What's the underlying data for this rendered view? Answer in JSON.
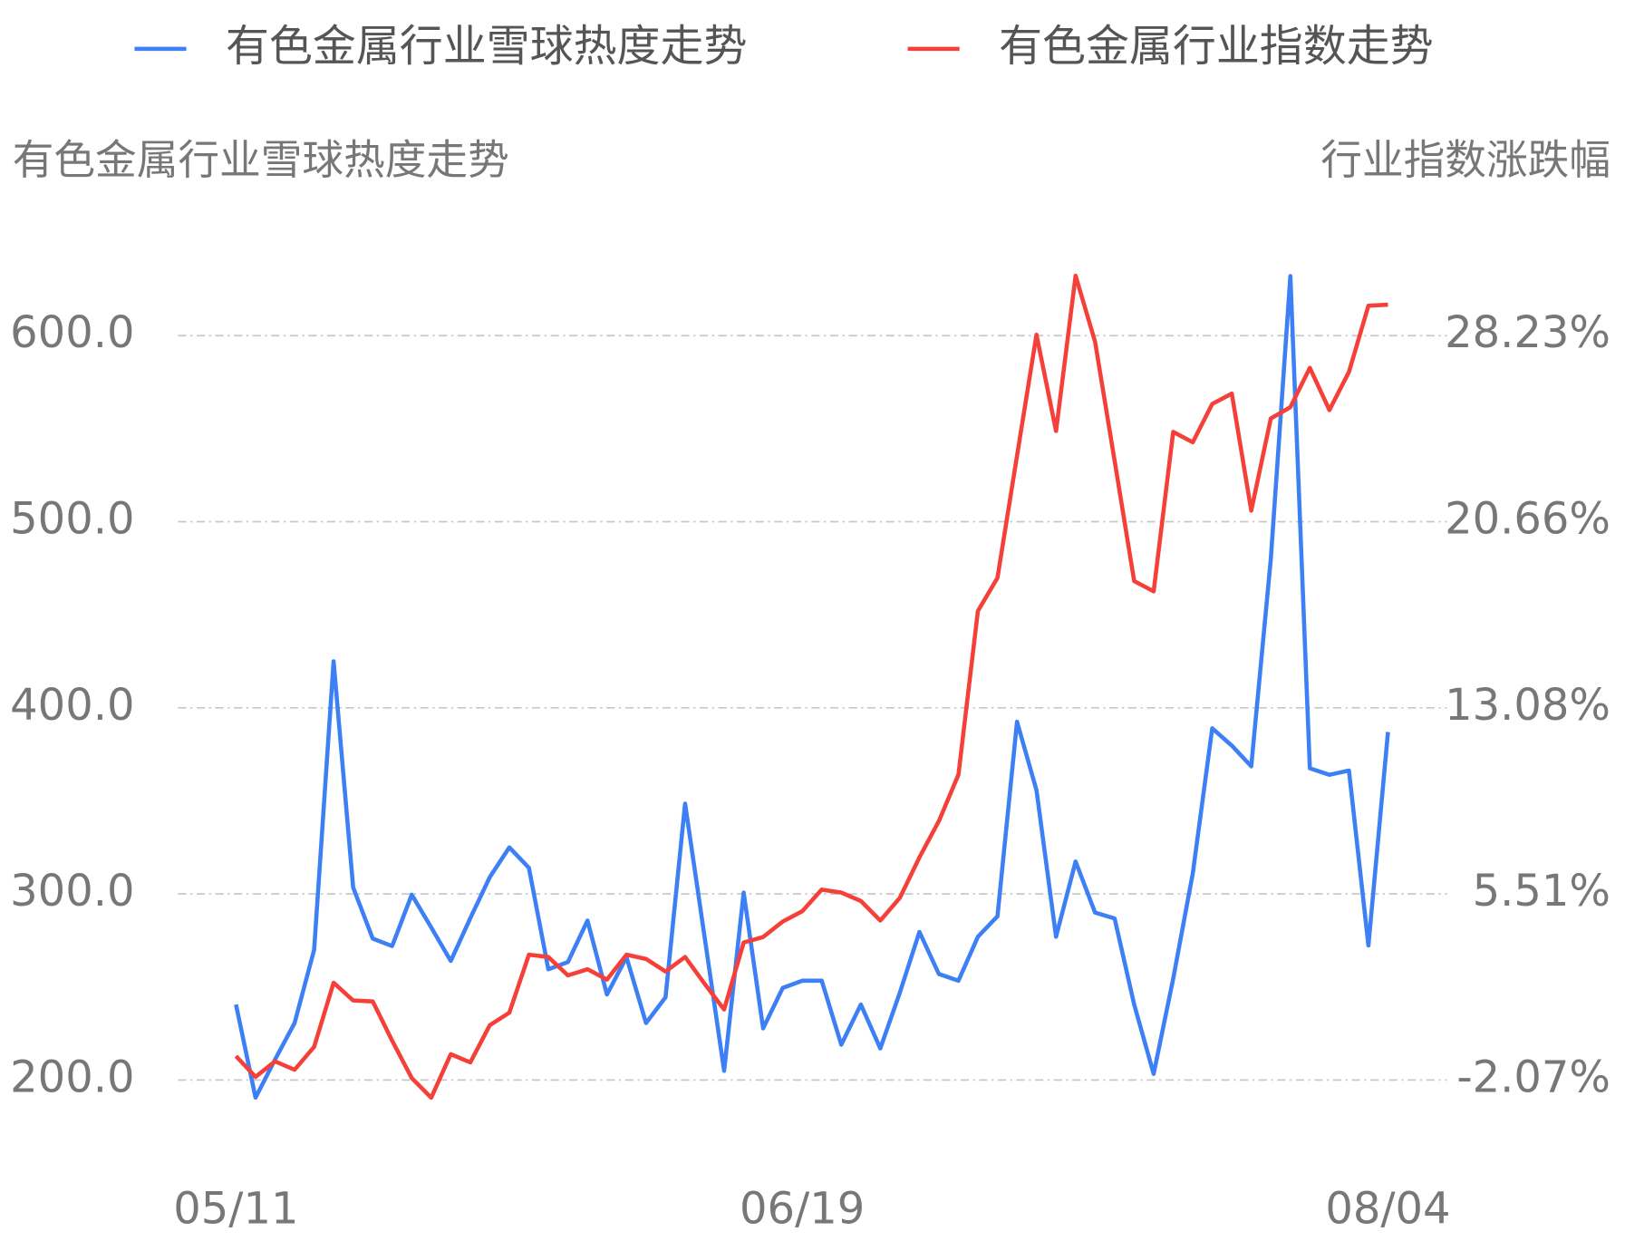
{
  "chart_data": {
    "type": "line",
    "ylabel": "有色金属行业雪球热度走势",
    "y2label": "行业指数涨跌幅",
    "categories": [
      "05/11",
      null,
      null,
      null,
      null,
      null,
      null,
      null,
      null,
      null,
      null,
      null,
      null,
      null,
      null,
      null,
      null,
      null,
      null,
      null,
      null,
      null,
      null,
      null,
      null,
      null,
      null,
      null,
      null,
      "06/19",
      null,
      null,
      null,
      null,
      null,
      null,
      null,
      null,
      null,
      null,
      null,
      null,
      null,
      null,
      null,
      null,
      null,
      null,
      null,
      null,
      null,
      null,
      null,
      null,
      null,
      null,
      null,
      null,
      null,
      "08/04"
    ],
    "series": [
      {
        "name": "有色金属行业雪球热度走势",
        "color": "#3d7ff5",
        "axis": "y",
        "values": [
          240.6,
          190.5,
          211,
          230.6,
          270,
          425,
          303.5,
          276,
          272,
          299.6,
          282,
          264,
          287,
          309,
          325,
          314,
          259.5,
          263.4,
          285.7,
          246,
          266,
          230.6,
          244.5,
          348.5,
          277,
          205,
          300.7,
          227.8,
          249.5,
          253.4,
          253.4,
          219,
          240.6,
          217,
          247,
          279.6,
          257,
          253.4,
          277,
          288,
          392.5,
          355.8,
          277,
          317.4,
          290,
          286.8,
          240.6,
          203.3,
          254.5,
          311,
          389,
          379.7,
          368.6,
          480,
          632,
          367.5,
          364,
          366.3,
          272.3,
          387
        ]
      },
      {
        "name": "有色金属行业指数走势",
        "color": "#f5403a",
        "axis": "y2",
        "values": [
          -1.1,
          -1.94,
          -1.31,
          -1.65,
          -0.72,
          1.89,
          1.17,
          1.13,
          -0.47,
          -1.99,
          -2.79,
          -1.02,
          -1.35,
          0.16,
          0.67,
          3.03,
          2.94,
          2.19,
          2.44,
          2.02,
          3.03,
          2.86,
          2.35,
          2.94,
          1.85,
          0.8,
          3.53,
          3.75,
          4.38,
          4.8,
          5.68,
          5.56,
          5.22,
          4.42,
          5.35,
          6.99,
          8.47,
          10.36,
          17.02,
          18.37,
          23.34,
          28.27,
          24.35,
          30.67,
          27.98,
          23.13,
          18.24,
          17.82,
          24.31,
          23.89,
          25.45,
          25.87,
          21.11,
          24.86,
          25.32,
          26.92,
          25.2,
          26.75,
          29.45,
          29.49
        ]
      }
    ],
    "ylim": [
      180,
      640
    ],
    "yticks": [
      {
        "value": 200,
        "label": "200.0"
      },
      {
        "value": 300,
        "label": "300.0"
      },
      {
        "value": 400,
        "label": "400.0"
      },
      {
        "value": 500,
        "label": "500.0"
      },
      {
        "value": 600,
        "label": "600.0"
      }
    ],
    "y2lim": [
      -3.585,
      31.26
    ],
    "y2ticks": [
      {
        "value": -2.07,
        "label": "-2.07%"
      },
      {
        "value": 5.51,
        "label": "5.51%"
      },
      {
        "value": 13.08,
        "label": "13.08%"
      },
      {
        "value": 20.66,
        "label": "20.66%"
      },
      {
        "value": 28.23,
        "label": "28.23%"
      }
    ],
    "grid": true
  }
}
